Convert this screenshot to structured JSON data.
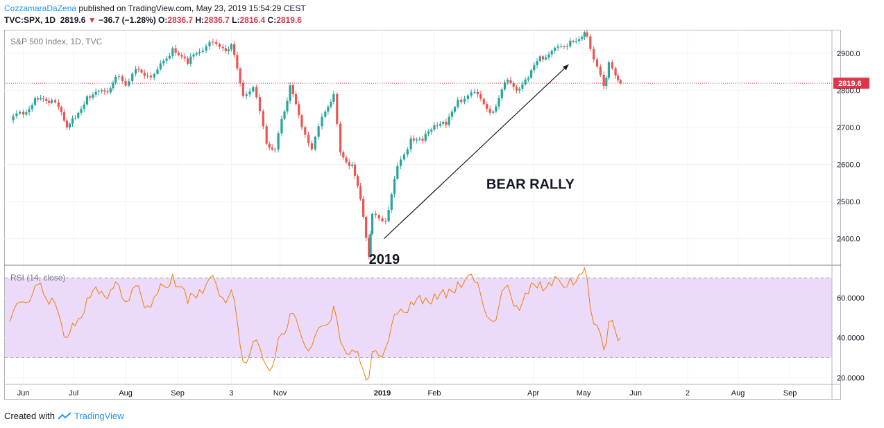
{
  "header": {
    "author": "CozzamaraDaZena",
    "published_text": " published on TradingView.com, May 23, 2019 15:54:29 CEST",
    "symbol": "TVC:SPX, 1D",
    "last": "2819.6",
    "change": "−36.7 (−1.28%)",
    "o_label": "O:",
    "o": "2836.7",
    "h_label": "H:",
    "h": "2836.7",
    "l_label": "L:",
    "l": "2816.4",
    "c_label": "C:",
    "c": "2819.6"
  },
  "footer": {
    "created": "Created with",
    "brand": "TradingView"
  },
  "colors": {
    "up": "#26a69a",
    "down": "#ef5350",
    "rsi": "#f57c00",
    "band": "#ecdafb",
    "price_line": "#e0344a",
    "annotation": "#131722"
  },
  "chart_data": [
    {
      "type": "candlestick",
      "title": "S&P 500 Index, 1D, TVC",
      "y_ticks": [
        "2900.0",
        "2800.0",
        "2700.0",
        "2600.0",
        "2500.0",
        "2400.0"
      ],
      "ylim": [
        2330,
        2960
      ],
      "current_price_label": "2819.6",
      "current_price": 2819.6,
      "annotations": [
        {
          "text": "BEAR RALLY"
        },
        {
          "text": "2019"
        }
      ],
      "trend_arrow": {
        "from": {
          "x": "2019-01-02",
          "y": 2400
        },
        "to": {
          "x": "2019-04-22",
          "y": 2870
        }
      },
      "x_ticks": [
        "Jun",
        "Jul",
        "Aug",
        "Sep",
        "3",
        "Nov",
        "2019",
        "Feb",
        "Apr",
        "May",
        "Jun",
        "2",
        "Aug",
        "Sep"
      ],
      "close_series": [
        {
          "x": "2018-05-24",
          "y": 2720
        },
        {
          "x": "2018-06-01",
          "y": 2735
        },
        {
          "x": "2018-06-08",
          "y": 2779
        },
        {
          "x": "2018-06-13",
          "y": 2777
        },
        {
          "x": "2018-06-18",
          "y": 2774
        },
        {
          "x": "2018-06-22",
          "y": 2755
        },
        {
          "x": "2018-06-27",
          "y": 2700
        },
        {
          "x": "2018-07-02",
          "y": 2726
        },
        {
          "x": "2018-07-09",
          "y": 2784
        },
        {
          "x": "2018-07-16",
          "y": 2798
        },
        {
          "x": "2018-07-23",
          "y": 2806
        },
        {
          "x": "2018-07-26",
          "y": 2837
        },
        {
          "x": "2018-08-01",
          "y": 2813
        },
        {
          "x": "2018-08-07",
          "y": 2858
        },
        {
          "x": "2018-08-14",
          "y": 2840
        },
        {
          "x": "2018-08-20",
          "y": 2857
        },
        {
          "x": "2018-08-29",
          "y": 2914
        },
        {
          "x": "2018-09-07",
          "y": 2872
        },
        {
          "x": "2018-09-14",
          "y": 2904
        },
        {
          "x": "2018-09-20",
          "y": 2931
        },
        {
          "x": "2018-09-28",
          "y": 2914
        },
        {
          "x": "2018-10-03",
          "y": 2925
        },
        {
          "x": "2018-10-10",
          "y": 2785
        },
        {
          "x": "2018-10-16",
          "y": 2809
        },
        {
          "x": "2018-10-24",
          "y": 2656
        },
        {
          "x": "2018-10-29",
          "y": 2641
        },
        {
          "x": "2018-11-02",
          "y": 2723
        },
        {
          "x": "2018-11-07",
          "y": 2814
        },
        {
          "x": "2018-11-14",
          "y": 2701
        },
        {
          "x": "2018-11-20",
          "y": 2641
        },
        {
          "x": "2018-11-28",
          "y": 2743
        },
        {
          "x": "2018-12-03",
          "y": 2790
        },
        {
          "x": "2018-12-07",
          "y": 2633
        },
        {
          "x": "2018-12-14",
          "y": 2600
        },
        {
          "x": "2018-12-19",
          "y": 2507
        },
        {
          "x": "2018-12-24",
          "y": 2351
        },
        {
          "x": "2018-12-26",
          "y": 2467
        },
        {
          "x": "2019-01-03",
          "y": 2447
        },
        {
          "x": "2019-01-10",
          "y": 2596
        },
        {
          "x": "2019-01-18",
          "y": 2670
        },
        {
          "x": "2019-01-25",
          "y": 2664
        },
        {
          "x": "2019-02-01",
          "y": 2706
        },
        {
          "x": "2019-02-08",
          "y": 2707
        },
        {
          "x": "2019-02-15",
          "y": 2775
        },
        {
          "x": "2019-02-25",
          "y": 2796
        },
        {
          "x": "2019-03-08",
          "y": 2743
        },
        {
          "x": "2019-03-15",
          "y": 2822
        },
        {
          "x": "2019-03-22",
          "y": 2800
        },
        {
          "x": "2019-03-29",
          "y": 2834
        },
        {
          "x": "2019-04-05",
          "y": 2892
        },
        {
          "x": "2019-04-12",
          "y": 2907
        },
        {
          "x": "2019-04-23",
          "y": 2934
        },
        {
          "x": "2019-04-30",
          "y": 2945
        },
        {
          "x": "2019-05-03",
          "y": 2946
        },
        {
          "x": "2019-05-07",
          "y": 2884
        },
        {
          "x": "2019-05-13",
          "y": 2812
        },
        {
          "x": "2019-05-16",
          "y": 2876
        },
        {
          "x": "2019-05-20",
          "y": 2840
        },
        {
          "x": "2019-05-23",
          "y": 2819.6
        }
      ]
    },
    {
      "type": "line",
      "title": "RSI (14, close)",
      "y_ticks": [
        "60.0000",
        "40.0000",
        "20.0000"
      ],
      "ylim": [
        17,
        76
      ],
      "band": [
        30,
        70
      ],
      "series": [
        {
          "x": "2018-05-24",
          "y": 48
        },
        {
          "x": "2018-06-01",
          "y": 58
        },
        {
          "x": "2018-06-08",
          "y": 66
        },
        {
          "x": "2018-06-13",
          "y": 62
        },
        {
          "x": "2018-06-18",
          "y": 60
        },
        {
          "x": "2018-06-22",
          "y": 52
        },
        {
          "x": "2018-06-27",
          "y": 40
        },
        {
          "x": "2018-07-02",
          "y": 46
        },
        {
          "x": "2018-07-09",
          "y": 60
        },
        {
          "x": "2018-07-16",
          "y": 62
        },
        {
          "x": "2018-07-23",
          "y": 64
        },
        {
          "x": "2018-07-26",
          "y": 68
        },
        {
          "x": "2018-08-01",
          "y": 58
        },
        {
          "x": "2018-08-07",
          "y": 66
        },
        {
          "x": "2018-08-14",
          "y": 56
        },
        {
          "x": "2018-08-20",
          "y": 62
        },
        {
          "x": "2018-08-29",
          "y": 72
        },
        {
          "x": "2018-09-07",
          "y": 57
        },
        {
          "x": "2018-09-14",
          "y": 64
        },
        {
          "x": "2018-09-20",
          "y": 70
        },
        {
          "x": "2018-09-28",
          "y": 60
        },
        {
          "x": "2018-10-03",
          "y": 64
        },
        {
          "x": "2018-10-10",
          "y": 28
        },
        {
          "x": "2018-10-16",
          "y": 38
        },
        {
          "x": "2018-10-24",
          "y": 26
        },
        {
          "x": "2018-10-29",
          "y": 30
        },
        {
          "x": "2018-11-02",
          "y": 42
        },
        {
          "x": "2018-11-07",
          "y": 52
        },
        {
          "x": "2018-11-14",
          "y": 40
        },
        {
          "x": "2018-11-20",
          "y": 36
        },
        {
          "x": "2018-11-28",
          "y": 46
        },
        {
          "x": "2018-12-03",
          "y": 56
        },
        {
          "x": "2018-12-07",
          "y": 38
        },
        {
          "x": "2018-12-14",
          "y": 34
        },
        {
          "x": "2018-12-19",
          "y": 27
        },
        {
          "x": "2018-12-24",
          "y": 20
        },
        {
          "x": "2018-12-26",
          "y": 33
        },
        {
          "x": "2019-01-03",
          "y": 35
        },
        {
          "x": "2019-01-10",
          "y": 52
        },
        {
          "x": "2019-01-18",
          "y": 58
        },
        {
          "x": "2019-01-25",
          "y": 57
        },
        {
          "x": "2019-02-01",
          "y": 62
        },
        {
          "x": "2019-02-08",
          "y": 60
        },
        {
          "x": "2019-02-15",
          "y": 68
        },
        {
          "x": "2019-02-25",
          "y": 68
        },
        {
          "x": "2019-03-08",
          "y": 48
        },
        {
          "x": "2019-03-15",
          "y": 65
        },
        {
          "x": "2019-03-22",
          "y": 56
        },
        {
          "x": "2019-03-29",
          "y": 62
        },
        {
          "x": "2019-04-05",
          "y": 68
        },
        {
          "x": "2019-04-12",
          "y": 66
        },
        {
          "x": "2019-04-23",
          "y": 70
        },
        {
          "x": "2019-04-30",
          "y": 72
        },
        {
          "x": "2019-05-03",
          "y": 70
        },
        {
          "x": "2019-05-07",
          "y": 47
        },
        {
          "x": "2019-05-13",
          "y": 34
        },
        {
          "x": "2019-05-16",
          "y": 48
        },
        {
          "x": "2019-05-20",
          "y": 43
        },
        {
          "x": "2019-05-23",
          "y": 40
        }
      ]
    }
  ]
}
